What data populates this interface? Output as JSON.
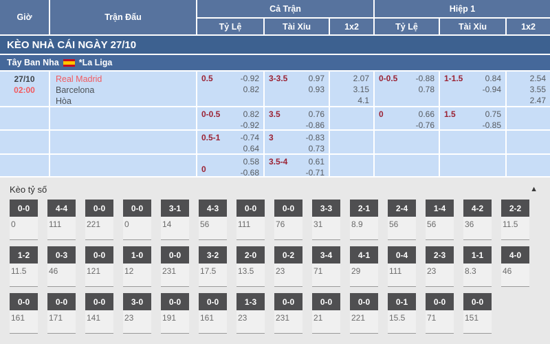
{
  "colors": {
    "header_blue": "#57739e",
    "banner_blue": "#3d6190",
    "league_blue": "#45689a",
    "cell_blue": "#c8ddf7",
    "accent_red": "#f25a5f",
    "handicap_red": "#9b2233",
    "score_box_gray": "#4f4f51",
    "section_bg": "#e8e8e8"
  },
  "header": {
    "col_time": "Giờ",
    "col_match": "Trận Đấu",
    "group_full": "Cả Trận",
    "group_half": "Hiệp 1",
    "sub_odds": "Tỷ Lệ",
    "sub_ou": "Tài Xỉu",
    "sub_1x2": "1x2"
  },
  "banner": {
    "title": "KÈO NHÀ CÁI NGÀY 27/10"
  },
  "league": {
    "country": "Tây Ban Nha",
    "flag_icon": "spain-flag",
    "name": "*La Liga"
  },
  "match": {
    "date": "27/10",
    "time": "02:00",
    "home": "Real Madrid",
    "away": "Barcelona",
    "draw_label": "Hòa"
  },
  "odds_rows": [
    {
      "ft_handicap": {
        "label": "0.5",
        "values": [
          "-0.92",
          "0.82"
        ]
      },
      "ft_ou": {
        "label": "3-3.5",
        "values": [
          "0.97",
          "0.93"
        ]
      },
      "ft_1x2": [
        "2.07",
        "3.15",
        "4.1"
      ],
      "h1_handicap": {
        "label": "0-0.5",
        "values": [
          "-0.88",
          "0.78"
        ]
      },
      "h1_ou": {
        "label": "1-1.5",
        "values": [
          "0.84",
          "-0.94"
        ]
      },
      "h1_1x2": [
        "2.54",
        "3.55",
        "2.47"
      ]
    },
    {
      "ft_handicap": {
        "label": "0-0.5",
        "values": [
          "0.82",
          "-0.92"
        ]
      },
      "ft_ou": {
        "label": "3.5",
        "values": [
          "0.76",
          "-0.86"
        ]
      },
      "ft_1x2": [],
      "h1_handicap": {
        "label": "0",
        "values": [
          "0.66",
          "-0.76"
        ]
      },
      "h1_ou": {
        "label": "1.5",
        "values": [
          "0.75",
          "-0.85"
        ]
      },
      "h1_1x2": []
    },
    {
      "ft_handicap": {
        "label": "0.5-1",
        "values": [
          "-0.74",
          "0.64"
        ]
      },
      "ft_ou": {
        "label": "3",
        "values": [
          "-0.83",
          "0.73"
        ]
      },
      "ft_1x2": [],
      "h1_handicap": {
        "label": "",
        "values": []
      },
      "h1_ou": {
        "label": "",
        "values": []
      },
      "h1_1x2": []
    },
    {
      "ft_handicap": {
        "label": "0",
        "label_valign": "bottom",
        "values": [
          "0.58",
          "-0.68"
        ]
      },
      "ft_ou": {
        "label": "3.5-4",
        "values": [
          "0.61",
          "-0.71"
        ]
      },
      "ft_1x2": [],
      "h1_handicap": {
        "label": "",
        "values": []
      },
      "h1_ou": {
        "label": "",
        "values": []
      },
      "h1_1x2": []
    }
  ],
  "score_section": {
    "title": "Kèo tỷ số",
    "collapse_icon": "chevron-up",
    "rows": [
      [
        {
          "score": "0-0",
          "odds": "0"
        },
        {
          "score": "4-4",
          "odds": "111"
        },
        {
          "score": "0-0",
          "odds": "221"
        },
        {
          "score": "0-0",
          "odds": "0"
        },
        {
          "score": "3-1",
          "odds": "14"
        },
        {
          "score": "4-3",
          "odds": "56"
        },
        {
          "score": "0-0",
          "odds": "111"
        },
        {
          "score": "0-0",
          "odds": "76"
        },
        {
          "score": "3-3",
          "odds": "31"
        },
        {
          "score": "2-1",
          "odds": "8.9"
        },
        {
          "score": "2-4",
          "odds": "56"
        },
        {
          "score": "1-4",
          "odds": "56"
        },
        {
          "score": "4-2",
          "odds": "36"
        },
        {
          "score": "2-2",
          "odds": "11.5"
        }
      ],
      [
        {
          "score": "1-2",
          "odds": "11.5"
        },
        {
          "score": "0-3",
          "odds": "46"
        },
        {
          "score": "0-0",
          "odds": "121"
        },
        {
          "score": "1-0",
          "odds": "12"
        },
        {
          "score": "0-0",
          "odds": "231"
        },
        {
          "score": "3-2",
          "odds": "17.5"
        },
        {
          "score": "2-0",
          "odds": "13.5"
        },
        {
          "score": "0-2",
          "odds": "23"
        },
        {
          "score": "3-4",
          "odds": "71"
        },
        {
          "score": "4-1",
          "odds": "29"
        },
        {
          "score": "0-4",
          "odds": "111"
        },
        {
          "score": "2-3",
          "odds": "23"
        },
        {
          "score": "1-1",
          "odds": "8.3"
        },
        {
          "score": "4-0",
          "odds": "46"
        }
      ],
      [
        {
          "score": "0-0",
          "odds": "161"
        },
        {
          "score": "0-0",
          "odds": "171"
        },
        {
          "score": "0-0",
          "odds": "141"
        },
        {
          "score": "3-0",
          "odds": "23"
        },
        {
          "score": "0-0",
          "odds": "191"
        },
        {
          "score": "0-0",
          "odds": "161"
        },
        {
          "score": "1-3",
          "odds": "23"
        },
        {
          "score": "0-0",
          "odds": "231"
        },
        {
          "score": "0-0",
          "odds": "21"
        },
        {
          "score": "0-0",
          "odds": "221"
        },
        {
          "score": "0-1",
          "odds": "15.5"
        },
        {
          "score": "0-0",
          "odds": "71"
        },
        {
          "score": "0-0",
          "odds": "151"
        }
      ]
    ]
  }
}
